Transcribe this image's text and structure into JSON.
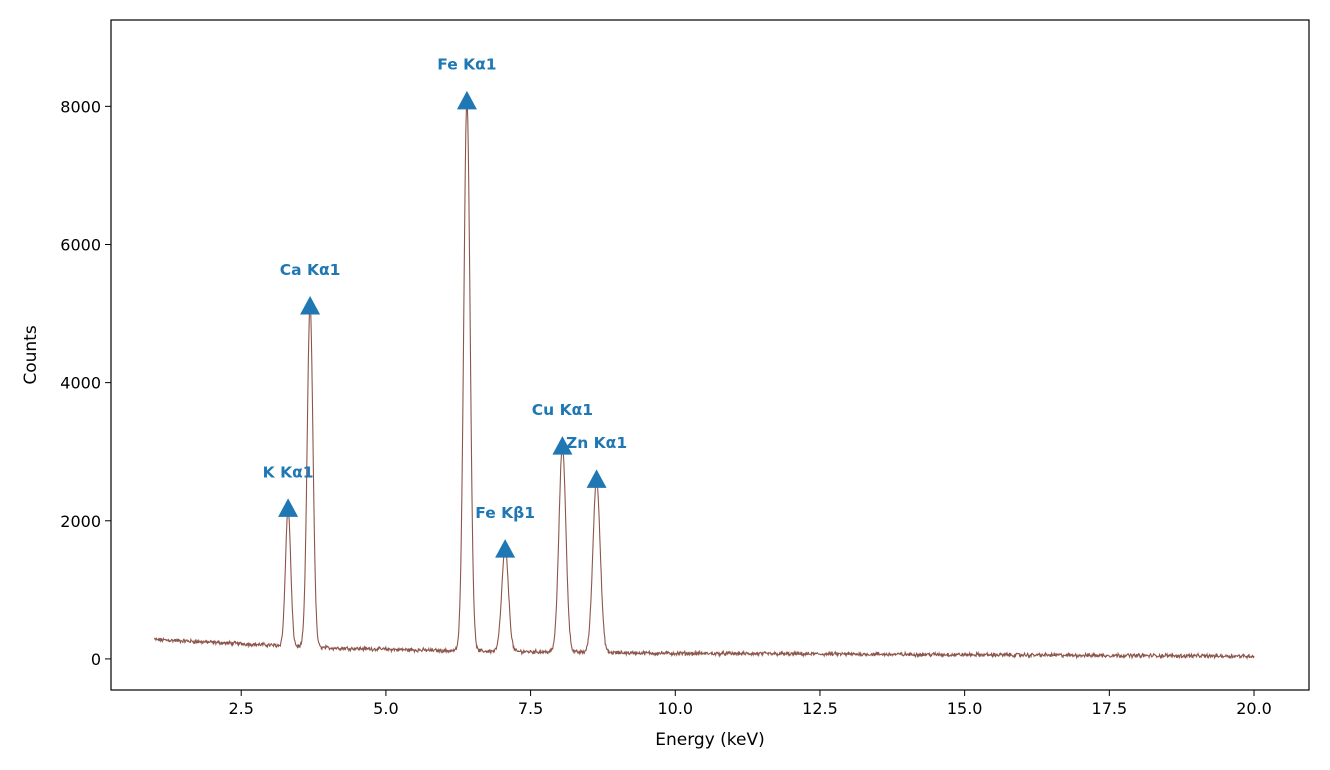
{
  "chart_data": {
    "type": "line",
    "title": "",
    "xlabel": "Energy (keV)",
    "ylabel": "Counts",
    "xlim": [
      0.25,
      20.95
    ],
    "ylim": [
      -450,
      9250
    ],
    "xticks": [
      2.5,
      5.0,
      7.5,
      10.0,
      12.5,
      15.0,
      17.5,
      20.0
    ],
    "xtick_labels": [
      "2.5",
      "5.0",
      "7.5",
      "10.0",
      "12.5",
      "15.0",
      "17.5",
      "20.0"
    ],
    "yticks": [
      0,
      2000,
      4000,
      6000,
      8000
    ],
    "ytick_labels": [
      "0",
      "2000",
      "4000",
      "6000",
      "8000"
    ],
    "grid": false,
    "x_range": [
      1.0,
      20.0
    ],
    "line_color": "#8c564b",
    "marker_color": "#1f77b4",
    "background": [
      {
        "x": 1.0,
        "y": 280
      },
      {
        "x": 3.0,
        "y": 200
      },
      {
        "x": 4.0,
        "y": 160
      },
      {
        "x": 6.0,
        "y": 120
      },
      {
        "x": 8.0,
        "y": 100
      },
      {
        "x": 10.0,
        "y": 80
      },
      {
        "x": 14.0,
        "y": 65
      },
      {
        "x": 20.0,
        "y": 40
      }
    ],
    "peaks": [
      {
        "label": "K Kα1",
        "energy": 3.31,
        "counts": 2180,
        "width": 0.045
      },
      {
        "label": "Ca Kα1",
        "energy": 3.69,
        "counts": 5110,
        "width": 0.05
      },
      {
        "label": "Fe Kα1",
        "energy": 6.4,
        "counts": 8080,
        "width": 0.055
      },
      {
        "label": "Fe Kβ1",
        "energy": 7.06,
        "counts": 1590,
        "width": 0.058
      },
      {
        "label": "Cu Kα1",
        "energy": 8.05,
        "counts": 3080,
        "width": 0.06
      },
      {
        "label": "Zn Kα1",
        "energy": 8.64,
        "counts": 2600,
        "width": 0.063
      }
    ]
  }
}
